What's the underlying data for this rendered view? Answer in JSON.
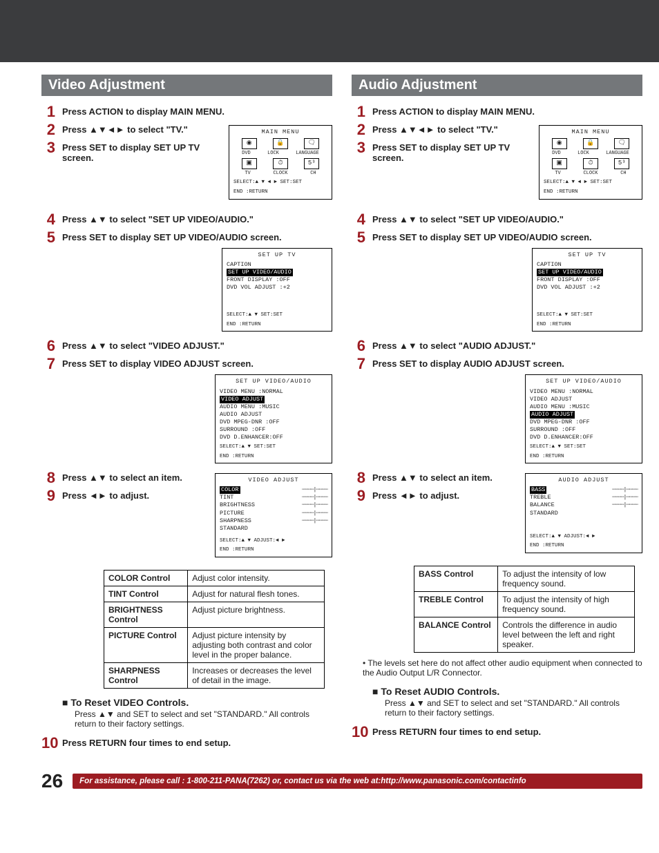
{
  "pageNumber": "26",
  "assistText": "For assistance, please call : 1-800-211-PANA(7262) or, contact us via the web at:http://www.panasonic.com/contactinfo",
  "arrows": {
    "ud": "▲▼",
    "udlr": "▲▼◄►",
    "lr": "◄►"
  },
  "video": {
    "title": "Video Adjustment",
    "steps": {
      "s1": "Press ACTION to display MAIN MENU.",
      "s2a": "Press ",
      "s2b": " to select \"TV.\"",
      "s3": "Press SET to display SET UP TV screen.",
      "s4a": "Press ",
      "s4b": " to select \"SET UP VIDEO/AUDIO.\"",
      "s5": "Press SET to display SET UP VIDEO/AUDIO screen.",
      "s6a": "Press ",
      "s6b": " to select \"VIDEO ADJUST.\"",
      "s7": "Press SET to display VIDEO ADJUST screen.",
      "s8a": "Press ",
      "s8b": " to select an item.",
      "s9a": "Press ",
      "s9b": " to adjust.",
      "s10": "Press RETURN four times to end setup."
    },
    "mainMenu": {
      "title": "MAIN MENU",
      "labels": [
        "DVD",
        "LOCK",
        "LANGUAGE",
        "TV",
        "CLOCK",
        "CH"
      ],
      "icons": [
        "◉",
        "🔒",
        "🗨",
        "▣",
        "⏱",
        "5³"
      ],
      "foot1": "SELECT:▲ ▼ ◄ ►  SET:SET",
      "foot2": "END  :RETURN"
    },
    "setupTV": {
      "title": "SET UP TV",
      "lines": [
        "CAPTION",
        "SET UP VIDEO/AUDIO",
        "FRONT DISPLAY  :OFF",
        "DVD VOL ADJUST :+2"
      ],
      "hlIndex": 1,
      "foot1": "SELECT:▲ ▼        SET:SET",
      "foot2": "END  :RETURN"
    },
    "setupVA": {
      "title": "SET UP VIDEO/AUDIO",
      "lines": [
        "VIDEO MENU    :NORMAL",
        "VIDEO ADJUST",
        "AUDIO MENU    :MUSIC",
        "AUDIO ADJUST",
        "DVD MPEG-DNR  :OFF",
        "SURROUND      :OFF",
        "DVD D.ENHANCER:OFF"
      ],
      "hlIndex": 1,
      "foot1": "SELECT:▲ ▼        SET:SET",
      "foot2": "END  :RETURN"
    },
    "adjust": {
      "title": "VIDEO ADJUST",
      "items": [
        "COLOR",
        "TINT",
        "BRIGHTNESS",
        "PICTURE",
        "SHARPNESS",
        "STANDARD"
      ],
      "hlIndex": 0,
      "sliders": 5,
      "foot1": "SELECT:▲ ▼    ADJUST:◄ ►",
      "foot2": "END  :RETURN"
    },
    "table": [
      [
        "COLOR Control",
        "Adjust color intensity."
      ],
      [
        "TINT Control",
        "Adjust for natural flesh tones."
      ],
      [
        "BRIGHTNESS Control",
        "Adjust picture brightness."
      ],
      [
        "PICTURE Control",
        "Adjust picture intensity by adjusting both contrast and color level in the proper balance."
      ],
      [
        "SHARPNESS Control",
        "Increases or decreases the level of detail in the image."
      ]
    ],
    "resetTitle": "To Reset VIDEO Controls.",
    "resetText": "Press ▲▼ and SET to select and set \"STANDARD.\" All controls return to their factory settings."
  },
  "audio": {
    "title": "Audio Adjustment",
    "steps": {
      "s1": "Press ACTION to display MAIN MENU.",
      "s2a": "Press ",
      "s2b": " to select \"TV.\"",
      "s3": "Press SET to display SET UP TV screen.",
      "s4a": "Press ",
      "s4b": " to select \"SET UP VIDEO/AUDIO.\"",
      "s5": "Press SET to display SET UP VIDEO/AUDIO screen.",
      "s6a": "Press ",
      "s6b": " to select \"AUDIO ADJUST.\"",
      "s7": "Press SET to display AUDIO ADJUST screen.",
      "s8a": "Press ",
      "s8b": " to select an item.",
      "s9a": "Press ",
      "s9b": " to adjust.",
      "s10": "Press RETURN four times to end setup."
    },
    "setupVA": {
      "title": "SET UP VIDEO/AUDIO",
      "lines": [
        "VIDEO MENU    :NORMAL",
        "VIDEO ADJUST",
        "AUDIO MENU    :MUSIC",
        "AUDIO ADJUST",
        "DVD MPEG-DNR  :OFF",
        "SURROUND      :OFF",
        "DVD D.ENHANCER:OFF"
      ],
      "hlIndex": 3,
      "foot1": "SELECT:▲ ▼        SET:SET",
      "foot2": "END  :RETURN"
    },
    "adjust": {
      "title": "AUDIO ADJUST",
      "items": [
        "BASS",
        "TREBLE",
        "BALANCE",
        "STANDARD"
      ],
      "hlIndex": 0,
      "sliders": 3,
      "foot1": "SELECT:▲ ▼    ADJUST:◄ ►",
      "foot2": "END  :RETURN"
    },
    "table": [
      [
        "BASS Control",
        "To adjust the intensity of low frequency sound."
      ],
      [
        "TREBLE Control",
        "To adjust the intensity of high frequency sound."
      ],
      [
        "BALANCE Control",
        "Controls the difference in audio level between the left and right speaker."
      ]
    ],
    "note": "• The levels set here do not affect other audio equipment when connected to the Audio Output L/R Connector.",
    "resetTitle": "To Reset AUDIO Controls.",
    "resetText": "Press ▲▼ and SET to select and set \"STANDARD.\" All controls return to their factory settings."
  }
}
